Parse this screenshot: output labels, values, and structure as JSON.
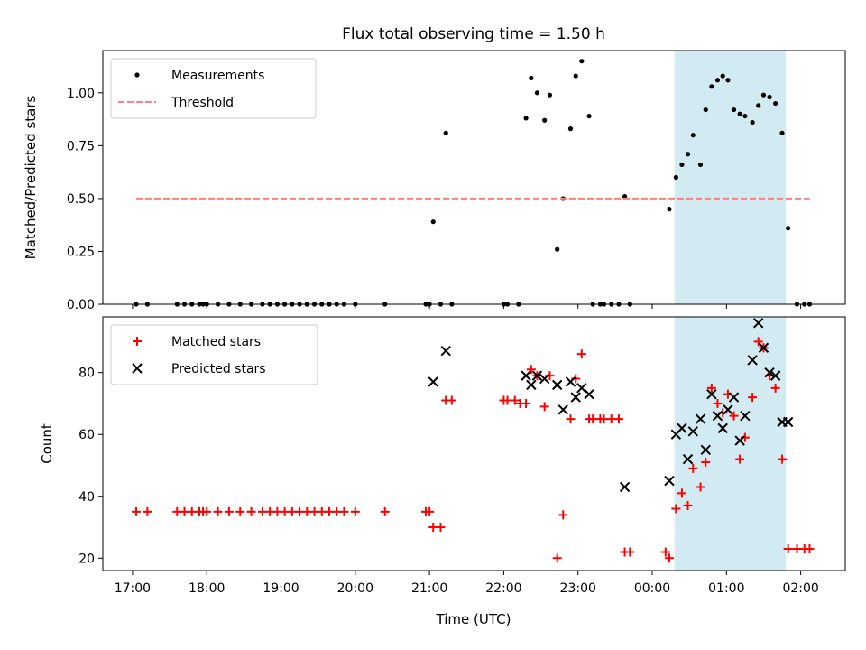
{
  "chart_data": {
    "title": "Flux total observing time = 1.50 h",
    "xlabel": "Time (UTC)",
    "x_unit": "hours UTC, times after midnight written as 24+",
    "x_ticks": [
      {
        "value": 17,
        "label": "17:00"
      },
      {
        "value": 18,
        "label": "18:00"
      },
      {
        "value": 19,
        "label": "19:00"
      },
      {
        "value": 20,
        "label": "20:00"
      },
      {
        "value": 21,
        "label": "21:00"
      },
      {
        "value": 22,
        "label": "22:00"
      },
      {
        "value": 23,
        "label": "23:00"
      },
      {
        "value": 24,
        "label": "00:00"
      },
      {
        "value": 25,
        "label": "01:00"
      },
      {
        "value": 26,
        "label": "02:00"
      }
    ],
    "xlim": [
      16.6,
      26.6
    ],
    "shaded_span": {
      "x0": 24.3,
      "x1": 25.8,
      "color": "#add8e6"
    },
    "panels": [
      {
        "type": "scatter",
        "ylabel": "Matched/Predicted stars",
        "ylim": [
          0,
          1.2
        ],
        "y_ticks": [
          {
            "value": 0,
            "label": "0.00"
          },
          {
            "value": 0.25,
            "label": "0.25"
          },
          {
            "value": 0.5,
            "label": "0.50"
          },
          {
            "value": 0.75,
            "label": "0.75"
          },
          {
            "value": 1.0,
            "label": "1.00"
          }
        ],
        "legend": {
          "position": "top-left",
          "entries": [
            "Measurements",
            "Threshold"
          ]
        },
        "series": [
          {
            "name": "Measurements",
            "marker": "dot",
            "color": "#000000",
            "points": [
              [
                17.05,
                0
              ],
              [
                17.2,
                0
              ],
              [
                17.6,
                0
              ],
              [
                17.7,
                0
              ],
              [
                17.8,
                0
              ],
              [
                17.9,
                0
              ],
              [
                17.95,
                0
              ],
              [
                18.0,
                0
              ],
              [
                18.15,
                0
              ],
              [
                18.3,
                0
              ],
              [
                18.45,
                0
              ],
              [
                18.6,
                0
              ],
              [
                18.75,
                0
              ],
              [
                18.85,
                0
              ],
              [
                18.95,
                0
              ],
              [
                19.05,
                0
              ],
              [
                19.15,
                0
              ],
              [
                19.25,
                0
              ],
              [
                19.35,
                0
              ],
              [
                19.45,
                0
              ],
              [
                19.55,
                0
              ],
              [
                19.65,
                0
              ],
              [
                19.75,
                0
              ],
              [
                19.85,
                0
              ],
              [
                20.0,
                0
              ],
              [
                20.4,
                0
              ],
              [
                20.95,
                0
              ],
              [
                21.0,
                0
              ],
              [
                21.15,
                0
              ],
              [
                21.3,
                0
              ],
              [
                22.0,
                0
              ],
              [
                22.05,
                0
              ],
              [
                22.2,
                0
              ],
              [
                21.05,
                0.39
              ],
              [
                21.22,
                0.81
              ],
              [
                22.3,
                0.88
              ],
              [
                22.37,
                1.07
              ],
              [
                22.45,
                1.0
              ],
              [
                22.55,
                0.87
              ],
              [
                22.62,
                0.99
              ],
              [
                22.72,
                0.26
              ],
              [
                22.8,
                0.5
              ],
              [
                22.9,
                0.83
              ],
              [
                22.97,
                1.08
              ],
              [
                23.05,
                1.15
              ],
              [
                23.15,
                0.89
              ],
              [
                23.2,
                0
              ],
              [
                23.3,
                0
              ],
              [
                23.35,
                0
              ],
              [
                23.45,
                0
              ],
              [
                23.55,
                0
              ],
              [
                23.7,
                0
              ],
              [
                23.63,
                0.51
              ],
              [
                24.23,
                0.45
              ],
              [
                24.32,
                0.6
              ],
              [
                24.4,
                0.66
              ],
              [
                24.48,
                0.71
              ],
              [
                24.55,
                0.8
              ],
              [
                24.65,
                0.66
              ],
              [
                24.72,
                0.92
              ],
              [
                24.8,
                1.03
              ],
              [
                24.88,
                1.06
              ],
              [
                24.95,
                1.08
              ],
              [
                25.02,
                1.06
              ],
              [
                25.1,
                0.92
              ],
              [
                25.18,
                0.9
              ],
              [
                25.25,
                0.89
              ],
              [
                25.35,
                0.86
              ],
              [
                25.43,
                0.94
              ],
              [
                25.5,
                0.99
              ],
              [
                25.58,
                0.98
              ],
              [
                25.66,
                0.95
              ],
              [
                25.75,
                0.81
              ],
              [
                25.83,
                0.36
              ],
              [
                25.95,
                0
              ],
              [
                26.05,
                0
              ],
              [
                26.12,
                0
              ]
            ]
          },
          {
            "name": "Threshold",
            "type": "line",
            "style": "dashed",
            "color": "#ff7f7f",
            "points": [
              [
                17.05,
                0.5
              ],
              [
                26.12,
                0.5
              ]
            ]
          }
        ]
      },
      {
        "type": "scatter",
        "ylabel": "Count",
        "ylim": [
          16,
          98
        ],
        "y_ticks": [
          {
            "value": 20,
            "label": "20"
          },
          {
            "value": 40,
            "label": "40"
          },
          {
            "value": 60,
            "label": "60"
          },
          {
            "value": 80,
            "label": "80"
          }
        ],
        "legend": {
          "position": "top-left",
          "entries": [
            "Matched stars",
            "Predicted stars"
          ]
        },
        "series": [
          {
            "name": "Matched stars",
            "marker": "plus",
            "color": "#ff0000",
            "points": [
              [
                17.05,
                35
              ],
              [
                17.2,
                35
              ],
              [
                17.6,
                35
              ],
              [
                17.7,
                35
              ],
              [
                17.8,
                35
              ],
              [
                17.9,
                35
              ],
              [
                17.95,
                35
              ],
              [
                18.0,
                35
              ],
              [
                18.15,
                35
              ],
              [
                18.3,
                35
              ],
              [
                18.45,
                35
              ],
              [
                18.6,
                35
              ],
              [
                18.75,
                35
              ],
              [
                18.85,
                35
              ],
              [
                18.95,
                35
              ],
              [
                19.05,
                35
              ],
              [
                19.15,
                35
              ],
              [
                19.25,
                35
              ],
              [
                19.35,
                35
              ],
              [
                19.45,
                35
              ],
              [
                19.55,
                35
              ],
              [
                19.65,
                35
              ],
              [
                19.75,
                35
              ],
              [
                19.85,
                35
              ],
              [
                20.0,
                35
              ],
              [
                20.4,
                35
              ],
              [
                20.95,
                35
              ],
              [
                21.0,
                35
              ],
              [
                21.05,
                30
              ],
              [
                21.15,
                30
              ],
              [
                21.22,
                71
              ],
              [
                21.3,
                71
              ],
              [
                22.0,
                71
              ],
              [
                22.05,
                71
              ],
              [
                22.15,
                71
              ],
              [
                22.22,
                70
              ],
              [
                22.3,
                70
              ],
              [
                22.37,
                81
              ],
              [
                22.45,
                79
              ],
              [
                22.55,
                69
              ],
              [
                22.62,
                79
              ],
              [
                22.72,
                20
              ],
              [
                22.8,
                34
              ],
              [
                22.9,
                65
              ],
              [
                22.97,
                78
              ],
              [
                23.05,
                86
              ],
              [
                23.15,
                65
              ],
              [
                23.2,
                65
              ],
              [
                23.3,
                65
              ],
              [
                23.35,
                65
              ],
              [
                23.45,
                65
              ],
              [
                23.55,
                65
              ],
              [
                23.63,
                22
              ],
              [
                23.7,
                22
              ],
              [
                24.18,
                22
              ],
              [
                24.23,
                20
              ],
              [
                24.32,
                36
              ],
              [
                24.4,
                41
              ],
              [
                24.48,
                37
              ],
              [
                24.55,
                49
              ],
              [
                24.65,
                43
              ],
              [
                24.72,
                51
              ],
              [
                24.8,
                75
              ],
              [
                24.88,
                70
              ],
              [
                24.95,
                67
              ],
              [
                25.02,
                73
              ],
              [
                25.1,
                66
              ],
              [
                25.18,
                52
              ],
              [
                25.25,
                59
              ],
              [
                25.35,
                72
              ],
              [
                25.43,
                90
              ],
              [
                25.5,
                88
              ],
              [
                25.58,
                79
              ],
              [
                25.66,
                75
              ],
              [
                25.75,
                52
              ],
              [
                25.83,
                23
              ],
              [
                25.95,
                23
              ],
              [
                26.05,
                23
              ],
              [
                26.12,
                23
              ]
            ]
          },
          {
            "name": "Predicted stars",
            "marker": "x",
            "color": "#000000",
            "points": [
              [
                21.05,
                77
              ],
              [
                21.22,
                87
              ],
              [
                22.3,
                79
              ],
              [
                22.37,
                76
              ],
              [
                22.45,
                79
              ],
              [
                22.55,
                78
              ],
              [
                22.72,
                76
              ],
              [
                22.8,
                68
              ],
              [
                22.9,
                77
              ],
              [
                22.97,
                72
              ],
              [
                23.05,
                75
              ],
              [
                23.15,
                73
              ],
              [
                23.63,
                43
              ],
              [
                24.23,
                45
              ],
              [
                24.32,
                60
              ],
              [
                24.4,
                62
              ],
              [
                24.48,
                52
              ],
              [
                24.55,
                61
              ],
              [
                24.65,
                65
              ],
              [
                24.72,
                55
              ],
              [
                24.8,
                73
              ],
              [
                24.88,
                66
              ],
              [
                24.95,
                62
              ],
              [
                25.02,
                68
              ],
              [
                25.1,
                72
              ],
              [
                25.18,
                58
              ],
              [
                25.25,
                66
              ],
              [
                25.35,
                84
              ],
              [
                25.43,
                96
              ],
              [
                25.5,
                88
              ],
              [
                25.58,
                80
              ],
              [
                25.66,
                79
              ],
              [
                25.75,
                64
              ],
              [
                25.83,
                64
              ]
            ]
          }
        ]
      }
    ]
  }
}
